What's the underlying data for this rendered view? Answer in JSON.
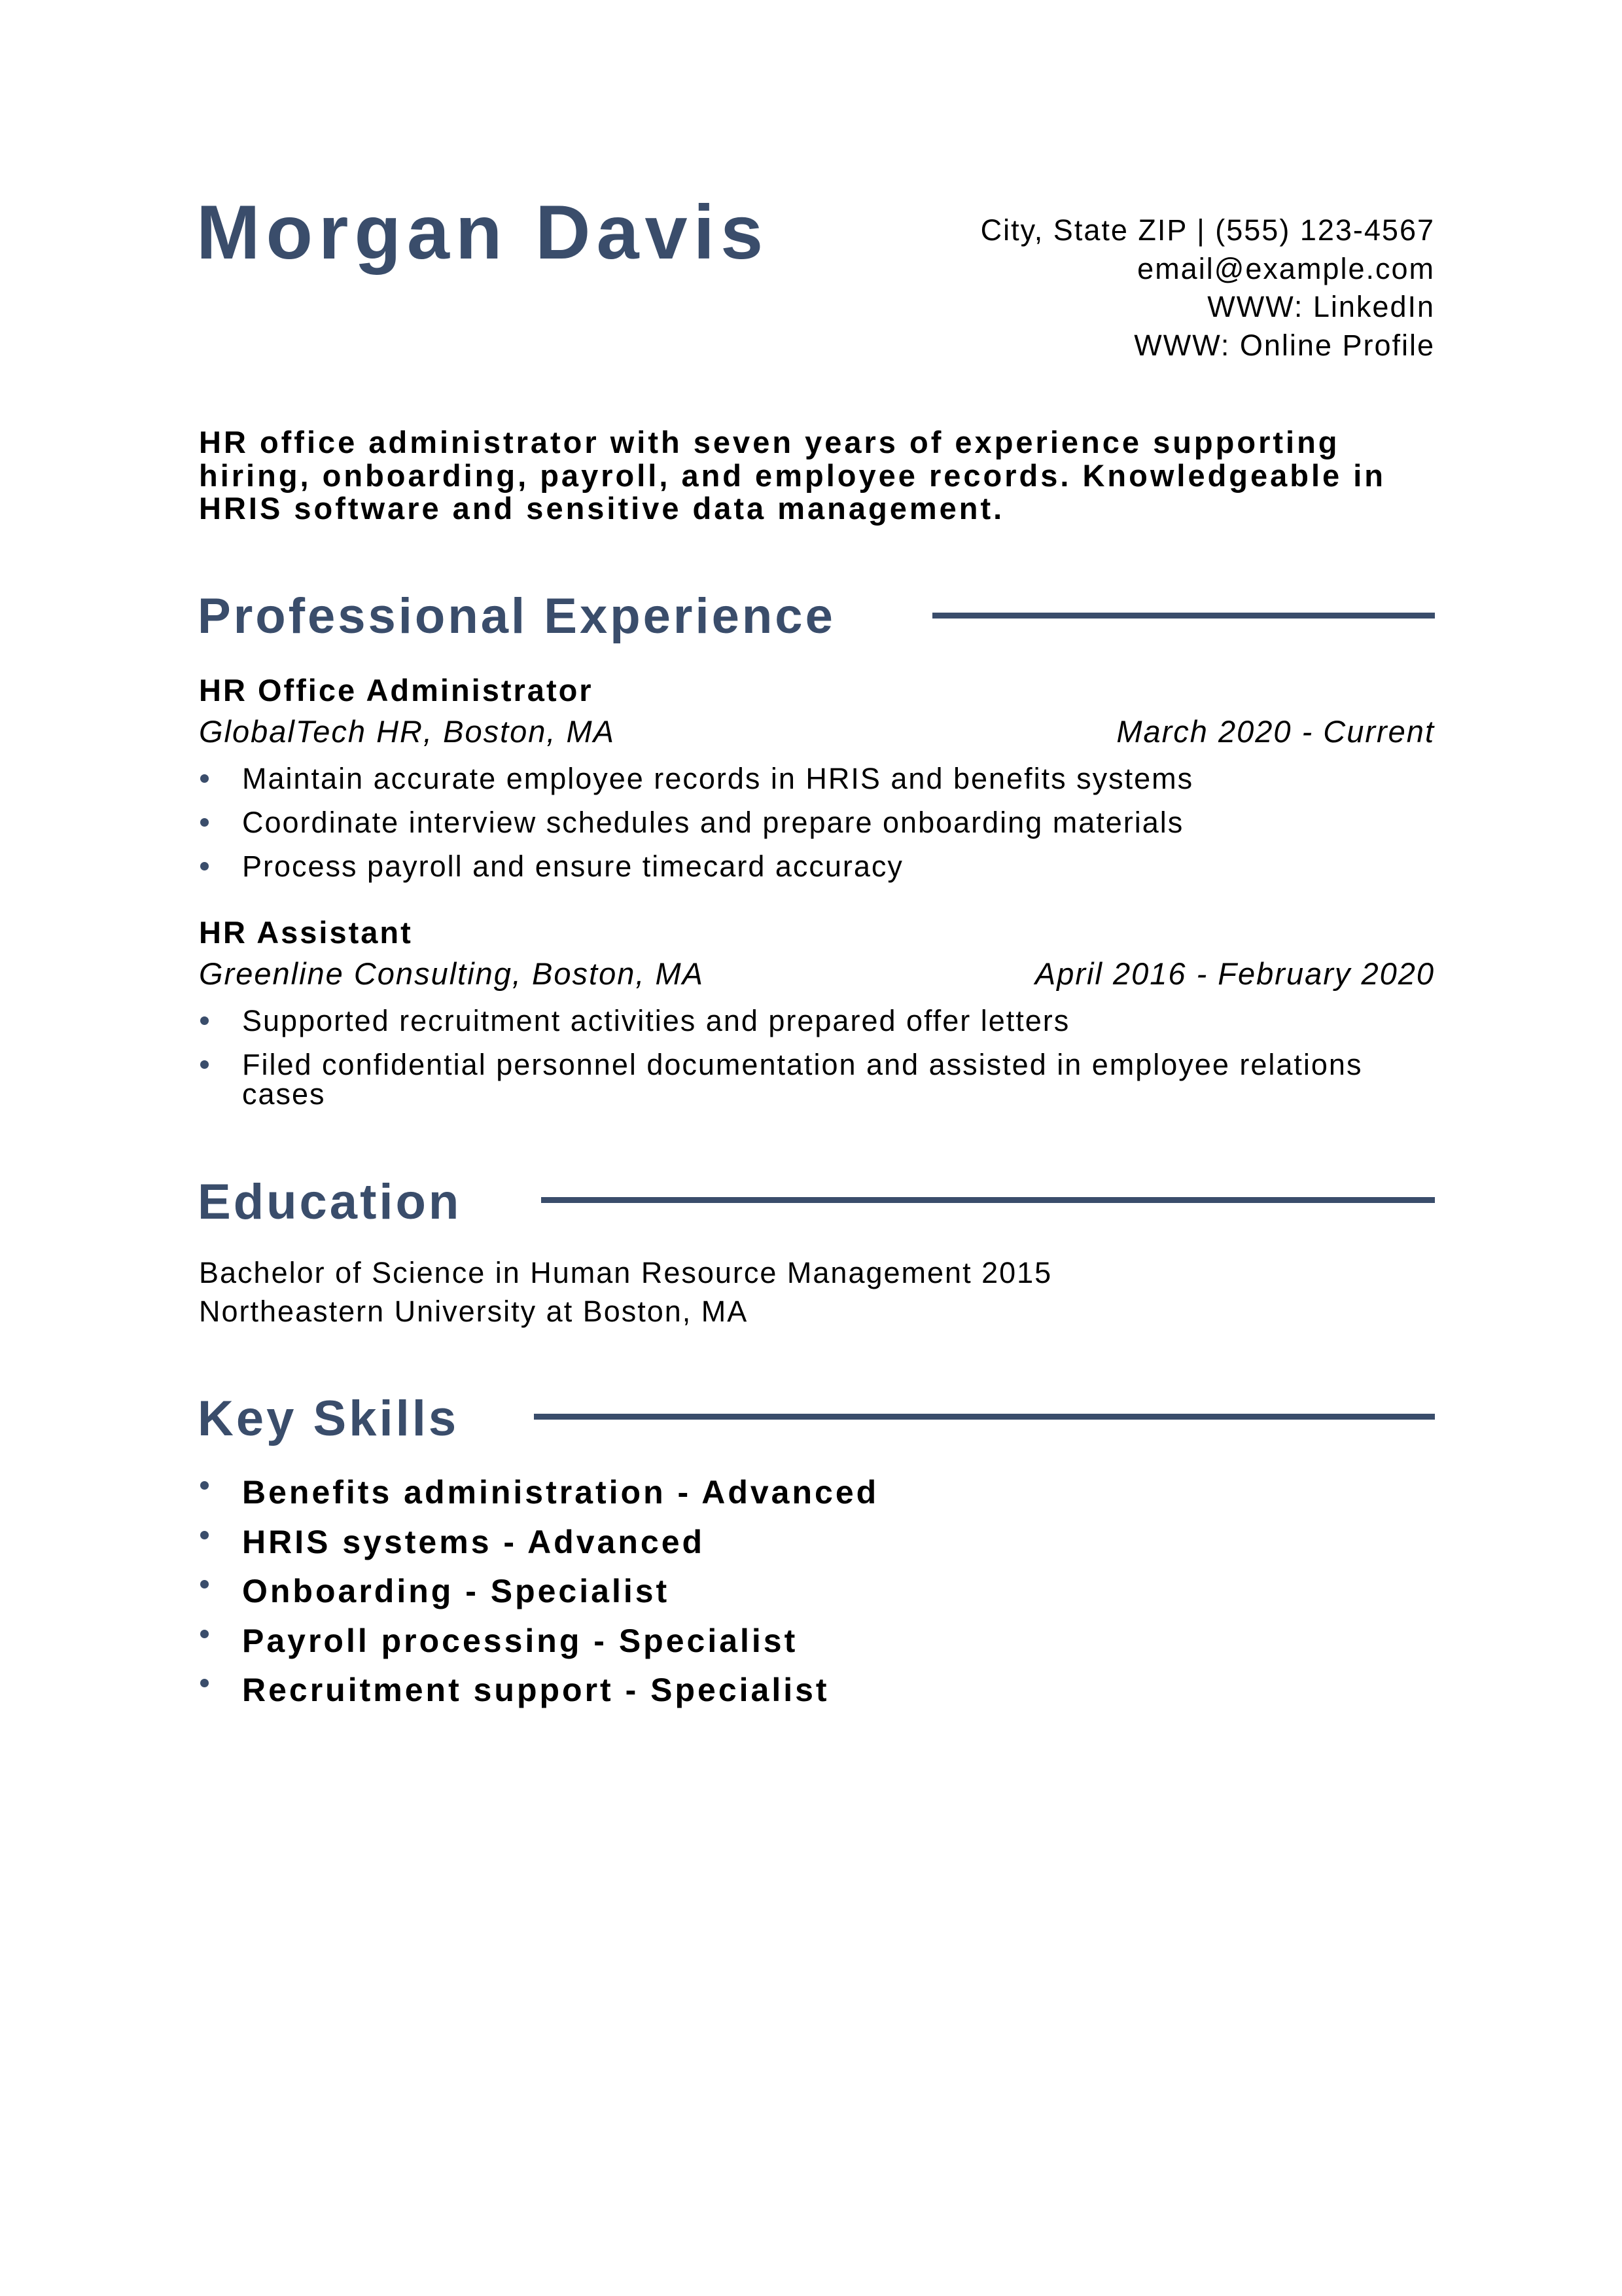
{
  "accent_color": "#3a4d6b",
  "header": {
    "name": "Morgan Davis",
    "contact": [
      "City, State ZIP | (555) 123-4567",
      "email@example.com",
      "WWW: LinkedIn",
      "WWW: Online Profile"
    ]
  },
  "summary": "HR office administrator with seven years of experience supporting hiring, onboarding, payroll, and employee records. Knowledgeable in HRIS software and sensitive data management.",
  "experience": {
    "heading": "Professional Experience",
    "jobs": [
      {
        "title": "HR Office Administrator",
        "company": "GlobalTech HR, Boston, MA",
        "dates": "March 2020 - Current",
        "bullets": [
          "Maintain accurate employee records in HRIS and benefits systems",
          "Coordinate interview schedules and prepare onboarding materials",
          "Process payroll and ensure timecard accuracy"
        ]
      },
      {
        "title": "HR Assistant",
        "company": "Greenline Consulting, Boston, MA",
        "dates": "April 2016 - February 2020",
        "bullets": [
          "Supported recruitment activities and prepared offer letters",
          "Filed confidential personnel documentation and assisted in employee relations cases"
        ]
      }
    ]
  },
  "education": {
    "heading": "Education",
    "degree": "Bachelor of Science in Human Resource Management 2015",
    "school": "Northeastern University at Boston, MA"
  },
  "skills": {
    "heading": "Key Skills",
    "items": [
      "Benefits administration - Advanced",
      "HRIS systems - Advanced",
      "Onboarding - Specialist",
      "Payroll processing - Specialist",
      "Recruitment support - Specialist"
    ]
  }
}
